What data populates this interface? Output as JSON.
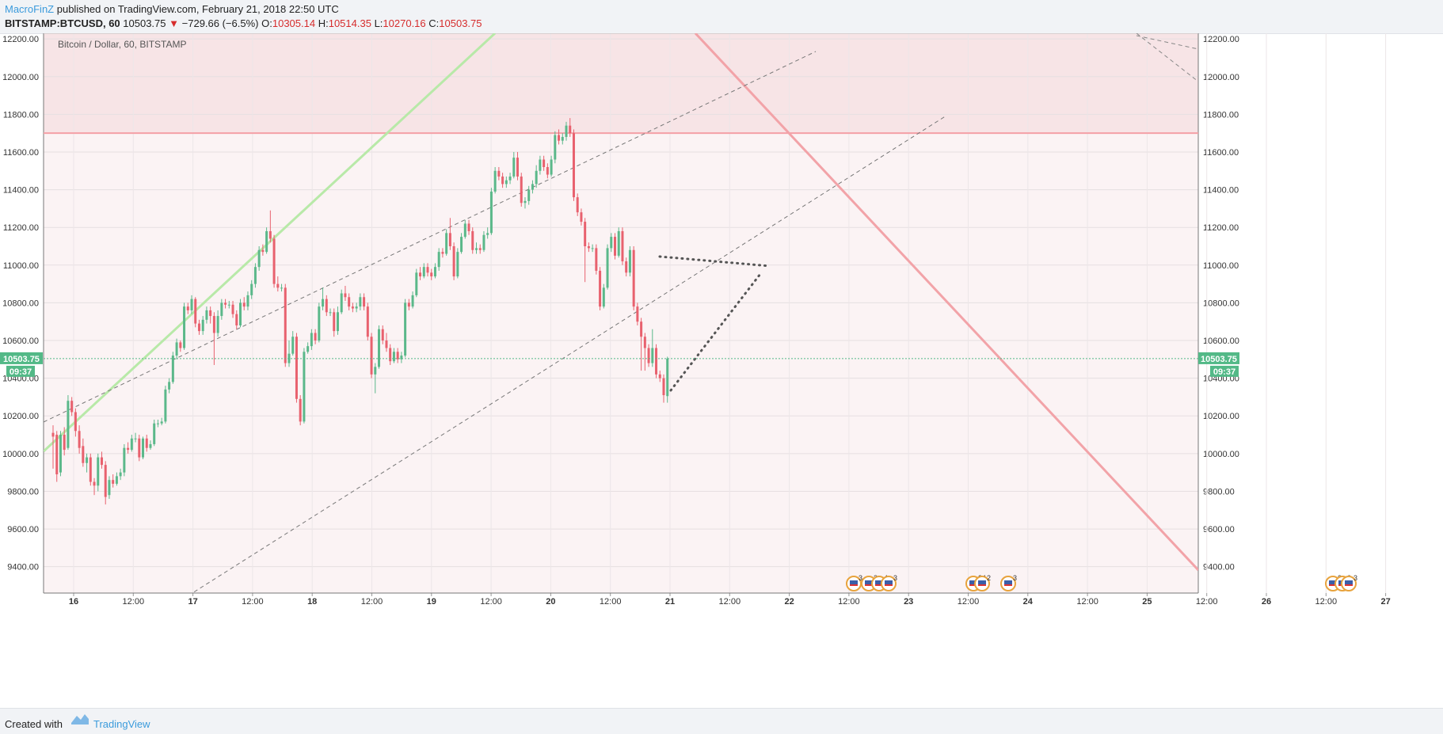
{
  "header": {
    "author": "MacroFinZ",
    "published": " published on TradingView.com, February 21, 2018 22:50 UTC",
    "symbol": "BITSTAMP:BTCUSD, 60",
    "price": "10503.75",
    "change": "−729.66 (−6.5%)",
    "open_label": "O:",
    "open": "10305.14",
    "high_label": "H:",
    "high": "10514.35",
    "low_label": "L:",
    "low": "10270.16",
    "close_label": "C:",
    "close": "10503.75"
  },
  "chart_data": {
    "type": "candlestick",
    "title": "Bitcoin / Dollar, 60, BITSTAMP",
    "ylim": [
      9260,
      12230
    ],
    "y_ticks": [
      "12200.00",
      "12000.00",
      "11800.00",
      "11600.00",
      "11400.00",
      "11200.00",
      "11000.00",
      "10800.00",
      "10600.00",
      "10400.00",
      "10200.00",
      "10000.00",
      "9800.00",
      "9600.00",
      "9400.00"
    ],
    "x_ticks": [
      "16",
      "12:00",
      "17",
      "12:00",
      "18",
      "12:00",
      "19",
      "12:00",
      "20",
      "12:00",
      "21",
      "12:00",
      "22",
      "12:00",
      "23",
      "12:00",
      "24",
      "12:00",
      "25",
      "12:00",
      "26",
      "12:00",
      "27"
    ],
    "last_price": "10503.75",
    "countdown": "09:37",
    "resistance_level": 11700,
    "event_badges": [
      "3",
      "2",
      "4",
      "3",
      "24",
      "2",
      "3",
      "3",
      "3",
      "3"
    ],
    "colors": {
      "up": "#5bb88a",
      "down": "#e8616e",
      "zone": "#f6d5d8",
      "resistance": "#f4a0a6",
      "support_line": "#b8e9a8",
      "last_price_tag": "#53b987"
    },
    "candles": [
      {
        "o": 10110,
        "c": 10090,
        "h": 10150,
        "l": 9920
      },
      {
        "o": 10100,
        "c": 9890,
        "h": 10120,
        "l": 9850
      },
      {
        "o": 9900,
        "c": 10100,
        "h": 10120,
        "l": 9880
      },
      {
        "o": 10100,
        "c": 10020,
        "h": 10140,
        "l": 9990
      },
      {
        "o": 10030,
        "c": 10280,
        "h": 10310,
        "l": 10020
      },
      {
        "o": 10280,
        "c": 10220,
        "h": 10300,
        "l": 10200
      },
      {
        "o": 10220,
        "c": 10120,
        "h": 10240,
        "l": 10090
      },
      {
        "o": 10120,
        "c": 10030,
        "h": 10150,
        "l": 10000
      },
      {
        "o": 10040,
        "c": 9950,
        "h": 10080,
        "l": 9930
      },
      {
        "o": 9950,
        "c": 9980,
        "h": 10000,
        "l": 9900
      },
      {
        "o": 9980,
        "c": 9850,
        "h": 10000,
        "l": 9830
      },
      {
        "o": 9850,
        "c": 9830,
        "h": 9870,
        "l": 9780
      },
      {
        "o": 9830,
        "c": 9980,
        "h": 10000,
        "l": 9800
      },
      {
        "o": 9980,
        "c": 9940,
        "h": 10010,
        "l": 9920
      },
      {
        "o": 9940,
        "c": 9770,
        "h": 9960,
        "l": 9730
      },
      {
        "o": 9780,
        "c": 9860,
        "h": 9880,
        "l": 9760
      },
      {
        "o": 9860,
        "c": 9840,
        "h": 9890,
        "l": 9820
      },
      {
        "o": 9840,
        "c": 9880,
        "h": 9900,
        "l": 9830
      },
      {
        "o": 9880,
        "c": 9900,
        "h": 9920,
        "l": 9860
      },
      {
        "o": 9900,
        "c": 10030,
        "h": 10050,
        "l": 9880
      },
      {
        "o": 10030,
        "c": 10020,
        "h": 10060,
        "l": 10000
      },
      {
        "o": 10020,
        "c": 10080,
        "h": 10100,
        "l": 10010
      },
      {
        "o": 10080,
        "c": 10080,
        "h": 10110,
        "l": 10060
      },
      {
        "o": 10080,
        "c": 9980,
        "h": 10100,
        "l": 9960
      },
      {
        "o": 9980,
        "c": 10080,
        "h": 10090,
        "l": 9970
      },
      {
        "o": 10080,
        "c": 10030,
        "h": 10100,
        "l": 10010
      },
      {
        "o": 10030,
        "c": 10050,
        "h": 10070,
        "l": 10020
      },
      {
        "o": 10050,
        "c": 10160,
        "h": 10180,
        "l": 10040
      },
      {
        "o": 10160,
        "c": 10160,
        "h": 10180,
        "l": 10140
      },
      {
        "o": 10160,
        "c": 10170,
        "h": 10190,
        "l": 10150
      },
      {
        "o": 10170,
        "c": 10340,
        "h": 10360,
        "l": 10160
      },
      {
        "o": 10340,
        "c": 10380,
        "h": 10400,
        "l": 10320
      },
      {
        "o": 10380,
        "c": 10520,
        "h": 10540,
        "l": 10370
      },
      {
        "o": 10520,
        "c": 10590,
        "h": 10610,
        "l": 10500
      },
      {
        "o": 10590,
        "c": 10560,
        "h": 10600,
        "l": 10540
      },
      {
        "o": 10560,
        "c": 10780,
        "h": 10800,
        "l": 10550
      },
      {
        "o": 10780,
        "c": 10760,
        "h": 10800,
        "l": 10740
      },
      {
        "o": 10760,
        "c": 10820,
        "h": 10840,
        "l": 10740
      },
      {
        "o": 10820,
        "c": 10690,
        "h": 10830,
        "l": 10670
      },
      {
        "o": 10690,
        "c": 10650,
        "h": 10710,
        "l": 10630
      },
      {
        "o": 10650,
        "c": 10710,
        "h": 10730,
        "l": 10630
      },
      {
        "o": 10710,
        "c": 10760,
        "h": 10780,
        "l": 10690
      },
      {
        "o": 10760,
        "c": 10730,
        "h": 10780,
        "l": 10690
      },
      {
        "o": 10730,
        "c": 10640,
        "h": 10750,
        "l": 10470
      },
      {
        "o": 10640,
        "c": 10730,
        "h": 10760,
        "l": 10620
      },
      {
        "o": 10730,
        "c": 10800,
        "h": 10820,
        "l": 10710
      },
      {
        "o": 10800,
        "c": 10790,
        "h": 10820,
        "l": 10770
      },
      {
        "o": 10790,
        "c": 10790,
        "h": 10810,
        "l": 10770
      },
      {
        "o": 10790,
        "c": 10740,
        "h": 10810,
        "l": 10720
      },
      {
        "o": 10740,
        "c": 10680,
        "h": 10760,
        "l": 10660
      },
      {
        "o": 10680,
        "c": 10800,
        "h": 10820,
        "l": 10670
      },
      {
        "o": 10800,
        "c": 10780,
        "h": 10830,
        "l": 10760
      },
      {
        "o": 10780,
        "c": 10840,
        "h": 10860,
        "l": 10760
      },
      {
        "o": 10840,
        "c": 10900,
        "h": 10920,
        "l": 10820
      },
      {
        "o": 10900,
        "c": 10990,
        "h": 11010,
        "l": 10880
      },
      {
        "o": 10990,
        "c": 11080,
        "h": 11100,
        "l": 10970
      },
      {
        "o": 11080,
        "c": 11070,
        "h": 11110,
        "l": 11050
      },
      {
        "o": 11070,
        "c": 11180,
        "h": 11200,
        "l": 11060
      },
      {
        "o": 11180,
        "c": 11140,
        "h": 11290,
        "l": 11120
      },
      {
        "o": 11140,
        "c": 10900,
        "h": 11160,
        "l": 10880
      },
      {
        "o": 10900,
        "c": 10880,
        "h": 10940,
        "l": 10860
      },
      {
        "o": 10880,
        "c": 10880,
        "h": 10900,
        "l": 10860
      },
      {
        "o": 10880,
        "c": 10480,
        "h": 10900,
        "l": 10460
      },
      {
        "o": 10480,
        "c": 10530,
        "h": 10600,
        "l": 10460
      },
      {
        "o": 10530,
        "c": 10620,
        "h": 10650,
        "l": 10520
      },
      {
        "o": 10620,
        "c": 10290,
        "h": 10640,
        "l": 10270
      },
      {
        "o": 10290,
        "c": 10170,
        "h": 10310,
        "l": 10150
      },
      {
        "o": 10170,
        "c": 10540,
        "h": 10560,
        "l": 10160
      },
      {
        "o": 10540,
        "c": 10570,
        "h": 10590,
        "l": 10530
      },
      {
        "o": 10570,
        "c": 10640,
        "h": 10660,
        "l": 10550
      },
      {
        "o": 10640,
        "c": 10600,
        "h": 10660,
        "l": 10580
      },
      {
        "o": 10600,
        "c": 10780,
        "h": 10800,
        "l": 10590
      },
      {
        "o": 10780,
        "c": 10820,
        "h": 10880,
        "l": 10760
      },
      {
        "o": 10820,
        "c": 10750,
        "h": 10840,
        "l": 10730
      },
      {
        "o": 10750,
        "c": 10750,
        "h": 10770,
        "l": 10730
      },
      {
        "o": 10750,
        "c": 10650,
        "h": 10770,
        "l": 10620
      },
      {
        "o": 10650,
        "c": 10750,
        "h": 10780,
        "l": 10630
      },
      {
        "o": 10750,
        "c": 10850,
        "h": 10870,
        "l": 10740
      },
      {
        "o": 10850,
        "c": 10830,
        "h": 10890,
        "l": 10810
      },
      {
        "o": 10830,
        "c": 10780,
        "h": 10850,
        "l": 10760
      },
      {
        "o": 10780,
        "c": 10770,
        "h": 10800,
        "l": 10750
      },
      {
        "o": 10770,
        "c": 10780,
        "h": 10800,
        "l": 10750
      },
      {
        "o": 10780,
        "c": 10830,
        "h": 10850,
        "l": 10760
      },
      {
        "o": 10830,
        "c": 10780,
        "h": 10850,
        "l": 10760
      },
      {
        "o": 10780,
        "c": 10620,
        "h": 10800,
        "l": 10600
      },
      {
        "o": 10620,
        "c": 10420,
        "h": 10640,
        "l": 10400
      },
      {
        "o": 10420,
        "c": 10460,
        "h": 10480,
        "l": 10320
      },
      {
        "o": 10460,
        "c": 10660,
        "h": 10680,
        "l": 10450
      },
      {
        "o": 10660,
        "c": 10600,
        "h": 10680,
        "l": 10580
      },
      {
        "o": 10600,
        "c": 10560,
        "h": 10640,
        "l": 10540
      },
      {
        "o": 10560,
        "c": 10490,
        "h": 10580,
        "l": 10470
      },
      {
        "o": 10490,
        "c": 10540,
        "h": 10560,
        "l": 10480
      },
      {
        "o": 10540,
        "c": 10500,
        "h": 10560,
        "l": 10480
      },
      {
        "o": 10500,
        "c": 10520,
        "h": 10540,
        "l": 10480
      },
      {
        "o": 10520,
        "c": 10800,
        "h": 10820,
        "l": 10510
      },
      {
        "o": 10800,
        "c": 10780,
        "h": 10820,
        "l": 10760
      },
      {
        "o": 10780,
        "c": 10840,
        "h": 10860,
        "l": 10770
      },
      {
        "o": 10840,
        "c": 10960,
        "h": 10980,
        "l": 10830
      },
      {
        "o": 10960,
        "c": 10940,
        "h": 10990,
        "l": 10920
      },
      {
        "o": 10940,
        "c": 10990,
        "h": 11010,
        "l": 10930
      },
      {
        "o": 10990,
        "c": 10960,
        "h": 11010,
        "l": 10940
      },
      {
        "o": 10960,
        "c": 10940,
        "h": 10980,
        "l": 10920
      },
      {
        "o": 10940,
        "c": 10990,
        "h": 11010,
        "l": 10930
      },
      {
        "o": 10990,
        "c": 11070,
        "h": 11090,
        "l": 10970
      },
      {
        "o": 11070,
        "c": 11060,
        "h": 11090,
        "l": 11040
      },
      {
        "o": 11060,
        "c": 11170,
        "h": 11190,
        "l": 11050
      },
      {
        "o": 11170,
        "c": 11100,
        "h": 11250,
        "l": 11080
      },
      {
        "o": 11100,
        "c": 10940,
        "h": 11120,
        "l": 10920
      },
      {
        "o": 10940,
        "c": 11070,
        "h": 11090,
        "l": 10930
      },
      {
        "o": 11070,
        "c": 11150,
        "h": 11170,
        "l": 11060
      },
      {
        "o": 11150,
        "c": 11220,
        "h": 11240,
        "l": 11140
      },
      {
        "o": 11220,
        "c": 11180,
        "h": 11240,
        "l": 11160
      },
      {
        "o": 11180,
        "c": 11080,
        "h": 11200,
        "l": 11060
      },
      {
        "o": 11080,
        "c": 11090,
        "h": 11120,
        "l": 11060
      },
      {
        "o": 11090,
        "c": 11080,
        "h": 11110,
        "l": 11060
      },
      {
        "o": 11080,
        "c": 11160,
        "h": 11180,
        "l": 11070
      },
      {
        "o": 11160,
        "c": 11170,
        "h": 11200,
        "l": 11140
      },
      {
        "o": 11170,
        "c": 11390,
        "h": 11410,
        "l": 11160
      },
      {
        "o": 11390,
        "c": 11500,
        "h": 11520,
        "l": 11380
      },
      {
        "o": 11500,
        "c": 11470,
        "h": 11520,
        "l": 11450
      },
      {
        "o": 11470,
        "c": 11430,
        "h": 11490,
        "l": 11410
      },
      {
        "o": 11430,
        "c": 11450,
        "h": 11470,
        "l": 11410
      },
      {
        "o": 11450,
        "c": 11470,
        "h": 11490,
        "l": 11430
      },
      {
        "o": 11470,
        "c": 11570,
        "h": 11600,
        "l": 11460
      },
      {
        "o": 11570,
        "c": 11470,
        "h": 11600,
        "l": 11450
      },
      {
        "o": 11470,
        "c": 11330,
        "h": 11490,
        "l": 11310
      },
      {
        "o": 11330,
        "c": 11340,
        "h": 11360,
        "l": 11300
      },
      {
        "o": 11340,
        "c": 11400,
        "h": 11420,
        "l": 11320
      },
      {
        "o": 11400,
        "c": 11430,
        "h": 11450,
        "l": 11380
      },
      {
        "o": 11430,
        "c": 11500,
        "h": 11530,
        "l": 11410
      },
      {
        "o": 11500,
        "c": 11560,
        "h": 11580,
        "l": 11480
      },
      {
        "o": 11560,
        "c": 11520,
        "h": 11580,
        "l": 11500
      },
      {
        "o": 11520,
        "c": 11480,
        "h": 11540,
        "l": 11460
      },
      {
        "o": 11480,
        "c": 11560,
        "h": 11580,
        "l": 11470
      },
      {
        "o": 11560,
        "c": 11690,
        "h": 11710,
        "l": 11540
      },
      {
        "o": 11690,
        "c": 11660,
        "h": 11720,
        "l": 11640
      },
      {
        "o": 11660,
        "c": 11680,
        "h": 11700,
        "l": 11640
      },
      {
        "o": 11680,
        "c": 11740,
        "h": 11760,
        "l": 11660
      },
      {
        "o": 11740,
        "c": 11700,
        "h": 11780,
        "l": 11680
      },
      {
        "o": 11700,
        "c": 11360,
        "h": 11720,
        "l": 11340
      },
      {
        "o": 11360,
        "c": 11280,
        "h": 11380,
        "l": 11260
      },
      {
        "o": 11280,
        "c": 11230,
        "h": 11300,
        "l": 11210
      },
      {
        "o": 11230,
        "c": 11100,
        "h": 11250,
        "l": 10910
      },
      {
        "o": 11100,
        "c": 11090,
        "h": 11120,
        "l": 11070
      },
      {
        "o": 11090,
        "c": 11090,
        "h": 11110,
        "l": 11070
      },
      {
        "o": 11090,
        "c": 10970,
        "h": 11110,
        "l": 10950
      },
      {
        "o": 10970,
        "c": 10780,
        "h": 10990,
        "l": 10760
      },
      {
        "o": 10780,
        "c": 10880,
        "h": 10900,
        "l": 10770
      },
      {
        "o": 10880,
        "c": 11090,
        "h": 11110,
        "l": 10870
      },
      {
        "o": 11090,
        "c": 11150,
        "h": 11170,
        "l": 11070
      },
      {
        "o": 11150,
        "c": 11050,
        "h": 11170,
        "l": 11030
      },
      {
        "o": 11050,
        "c": 11180,
        "h": 11200,
        "l": 11040
      },
      {
        "o": 11180,
        "c": 11020,
        "h": 11200,
        "l": 11000
      },
      {
        "o": 11020,
        "c": 10960,
        "h": 11040,
        "l": 10940
      },
      {
        "o": 10960,
        "c": 11080,
        "h": 11100,
        "l": 10940
      },
      {
        "o": 11080,
        "c": 10780,
        "h": 11100,
        "l": 10760
      },
      {
        "o": 10780,
        "c": 10700,
        "h": 10800,
        "l": 10680
      },
      {
        "o": 10700,
        "c": 10620,
        "h": 10720,
        "l": 10440
      },
      {
        "o": 10620,
        "c": 10560,
        "h": 10640,
        "l": 10440
      },
      {
        "o": 10560,
        "c": 10480,
        "h": 10580,
        "l": 10460
      },
      {
        "o": 10480,
        "c": 10560,
        "h": 10660,
        "l": 10460
      },
      {
        "o": 10560,
        "c": 10420,
        "h": 10580,
        "l": 10400
      },
      {
        "o": 10420,
        "c": 10400,
        "h": 10440,
        "l": 10380
      },
      {
        "o": 10400,
        "c": 10310,
        "h": 10420,
        "l": 10270
      },
      {
        "o": 10305,
        "c": 10504,
        "h": 10514,
        "l": 10270
      }
    ]
  }
}
